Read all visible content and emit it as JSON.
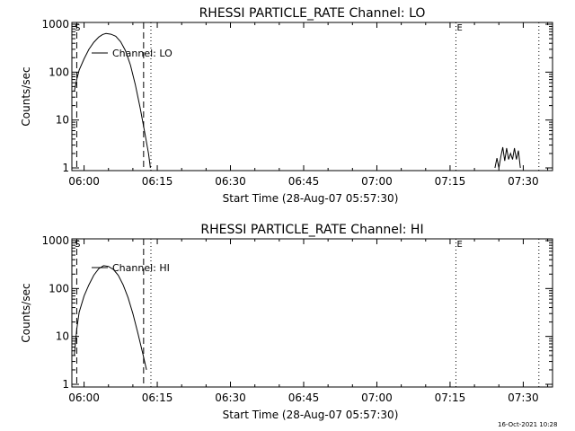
{
  "footer": {
    "timestamp": "16-Oct-2021 10:28"
  },
  "chart_data": [
    {
      "type": "line",
      "title": "RHESSI PARTICLE_RATE Channel: LO",
      "xlabel": "Start Time (28-Aug-07 05:57:30)",
      "ylabel": "Counts/sec",
      "yscale": "log",
      "x_unit": "minutes after 06:00",
      "xlim": [
        -2.5,
        96
      ],
      "ylim": [
        1,
        1000
      ],
      "xticks": [
        {
          "v": 0,
          "label": "06:00"
        },
        {
          "v": 15,
          "label": "06:15"
        },
        {
          "v": 30,
          "label": "06:30"
        },
        {
          "v": 45,
          "label": "06:45"
        },
        {
          "v": 60,
          "label": "07:00"
        },
        {
          "v": 75,
          "label": "07:15"
        },
        {
          "v": 90,
          "label": "07:30"
        }
      ],
      "yticks": [
        {
          "v": 1,
          "label": "1"
        },
        {
          "v": 10,
          "label": "10"
        },
        {
          "v": 100,
          "label": "100"
        },
        {
          "v": 1000,
          "label": "1000"
        }
      ],
      "legend": {
        "label": "Channel: LO",
        "placement": "top-left"
      },
      "markers": [
        {
          "label": "S",
          "x": -2.1,
          "style": "none"
        },
        {
          "label": "",
          "x": -1.5,
          "style": "dash"
        },
        {
          "label": "",
          "x": 12.2,
          "style": "dash"
        },
        {
          "label": "",
          "x": 13.7,
          "style": "dot"
        },
        {
          "label": "E",
          "x": 76.2,
          "style": "dot"
        },
        {
          "label": "",
          "x": 93.2,
          "style": "dot"
        }
      ],
      "series": [
        {
          "name": "Channel: LO",
          "segments": [
            [
              [
                -2.0,
                40
              ],
              [
                -1.5,
                70
              ],
              [
                -1,
                110
              ],
              [
                0,
                190
              ],
              [
                1,
                300
              ],
              [
                2,
                420
              ],
              [
                3,
                540
              ],
              [
                3.8,
                610
              ],
              [
                4.5,
                640
              ],
              [
                5.5,
                620
              ],
              [
                6.5,
                560
              ],
              [
                7.5,
                430
              ],
              [
                8.5,
                280
              ],
              [
                9.5,
                140
              ],
              [
                10.5,
                55
              ],
              [
                11.5,
                18
              ],
              [
                12.5,
                5
              ],
              [
                13.2,
                2
              ],
              [
                13.6,
                1
              ]
            ],
            [
              [
                84.2,
                1
              ],
              [
                84.6,
                1.6
              ],
              [
                85.0,
                1
              ],
              [
                85.4,
                1.7
              ],
              [
                85.8,
                2.7
              ],
              [
                86.2,
                1.4
              ],
              [
                86.6,
                2.6
              ],
              [
                87.0,
                1.5
              ],
              [
                87.4,
                2.0
              ],
              [
                87.8,
                1.5
              ],
              [
                88.2,
                2.6
              ],
              [
                88.6,
                1.5
              ],
              [
                89.0,
                2.3
              ],
              [
                89.4,
                1
              ]
            ]
          ]
        }
      ]
    },
    {
      "type": "line",
      "title": "RHESSI PARTICLE_RATE Channel: HI",
      "xlabel": "Start Time (28-Aug-07 05:57:30)",
      "ylabel": "Counts/sec",
      "yscale": "log",
      "x_unit": "minutes after 06:00",
      "xlim": [
        -2.5,
        96
      ],
      "ylim": [
        1,
        1000
      ],
      "xticks": [
        {
          "v": 0,
          "label": "06:00"
        },
        {
          "v": 15,
          "label": "06:15"
        },
        {
          "v": 30,
          "label": "06:30"
        },
        {
          "v": 45,
          "label": "06:45"
        },
        {
          "v": 60,
          "label": "07:00"
        },
        {
          "v": 75,
          "label": "07:15"
        },
        {
          "v": 90,
          "label": "07:30"
        }
      ],
      "yticks": [
        {
          "v": 1,
          "label": "1"
        },
        {
          "v": 10,
          "label": "10"
        },
        {
          "v": 100,
          "label": "100"
        },
        {
          "v": 1000,
          "label": "1000"
        }
      ],
      "legend": {
        "label": "Channel: HI",
        "placement": "top-left"
      },
      "markers": [
        {
          "label": "S",
          "x": -2.1,
          "style": "none"
        },
        {
          "label": "",
          "x": -1.5,
          "style": "dash"
        },
        {
          "label": "",
          "x": 12.2,
          "style": "dash"
        },
        {
          "label": "",
          "x": 13.7,
          "style": "dot"
        },
        {
          "label": "E",
          "x": 76.2,
          "style": "dot"
        },
        {
          "label": "",
          "x": 93.2,
          "style": "dot"
        }
      ],
      "series": [
        {
          "name": "Channel: HI",
          "segments": [
            [
              [
                -2.0,
                4
              ],
              [
                -1.5,
                14
              ],
              [
                -1,
                32
              ],
              [
                0,
                70
              ],
              [
                1,
                120
              ],
              [
                2,
                190
              ],
              [
                3,
                260
              ],
              [
                4,
                300
              ],
              [
                5,
                290
              ],
              [
                6,
                250
              ],
              [
                7,
                190
              ],
              [
                8,
                120
              ],
              [
                9,
                65
              ],
              [
                10,
                30
              ],
              [
                11,
                12
              ],
              [
                12,
                4.5
              ],
              [
                12.8,
                2
              ]
            ]
          ]
        }
      ]
    }
  ]
}
